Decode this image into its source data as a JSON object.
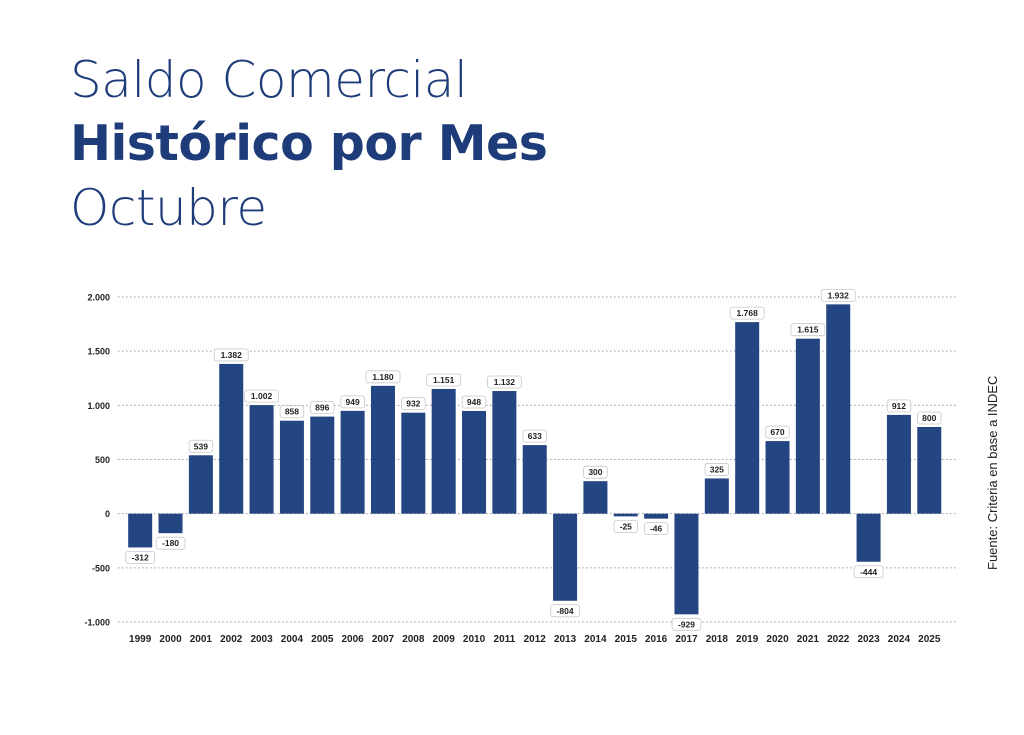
{
  "title": {
    "line1": "Saldo Comercial",
    "line2": "Histórico por Mes",
    "line3": "Octubre"
  },
  "source": "Fuente: Criteria en base a INDEC",
  "colors": {
    "title": "#1f3c7a",
    "bar": "#234582"
  },
  "chart_data": {
    "type": "bar",
    "categories": [
      "1999",
      "2000",
      "2001",
      "2002",
      "2003",
      "2004",
      "2005",
      "2006",
      "2007",
      "2008",
      "2009",
      "2010",
      "2011",
      "2012",
      "2013",
      "2014",
      "2015",
      "2016",
      "2017",
      "2018",
      "2019",
      "2020",
      "2021",
      "2022",
      "2023",
      "2024",
      "2025"
    ],
    "values": [
      -312,
      -180,
      539,
      1382,
      1002,
      858,
      896,
      949,
      1180,
      932,
      1151,
      948,
      1132,
      633,
      -804,
      300,
      -25,
      -46,
      -929,
      325,
      1768,
      670,
      1615,
      1932,
      -444,
      912,
      800
    ],
    "labels": [
      "-312",
      "-180",
      "539",
      "1.382",
      "1.002",
      "858",
      "896",
      "949",
      "1.180",
      "932",
      "1.151",
      "948",
      "1.132",
      "633",
      "-804",
      "300",
      "-25",
      "-46",
      "-929",
      "325",
      "1.768",
      "670",
      "1.615",
      "1.932",
      "-444",
      "912",
      "800"
    ],
    "yticks": [
      2000,
      1500,
      1000,
      500,
      0,
      -500,
      -1000
    ],
    "ytick_labels": [
      "2.000",
      "1.500",
      "1.000",
      "500",
      "0",
      "-500",
      "-1.000"
    ],
    "ylim": [
      -1000,
      2000
    ],
    "grid": true
  }
}
